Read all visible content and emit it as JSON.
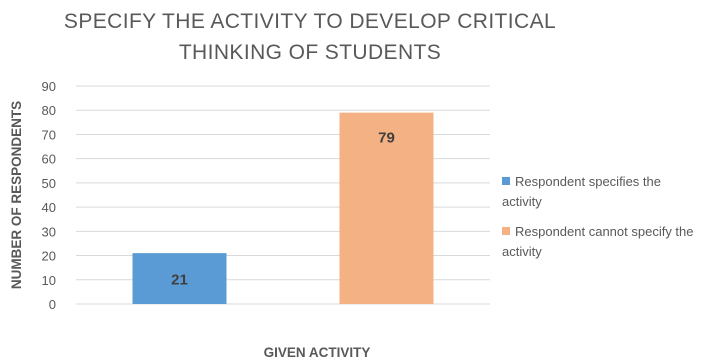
{
  "chart_data": {
    "type": "bar",
    "title_lines": [
      "SPECIFY THE ACTIVITY TO DEVELOP CRITICAL",
      "THINKING OF STUDENTS"
    ],
    "title": "SPECIFY THE ACTIVITY TO DEVELOP CRITICAL THINKING OF STUDENTS",
    "xlabel": "GIVEN ACTIVITY",
    "ylabel": "NUMBER OF RESPONDENTS",
    "ylim": [
      0,
      90
    ],
    "yticks": [
      0,
      10,
      20,
      30,
      40,
      50,
      60,
      70,
      80,
      90
    ],
    "grid": true,
    "legend_position": "right",
    "series": [
      {
        "name": "Respondent specifies the activity",
        "value": 21,
        "label": "21",
        "color": "#5b9bd5"
      },
      {
        "name": "Respondent cannot specify the activity",
        "value": 79,
        "label": "79",
        "color": "#f4b183"
      }
    ]
  }
}
